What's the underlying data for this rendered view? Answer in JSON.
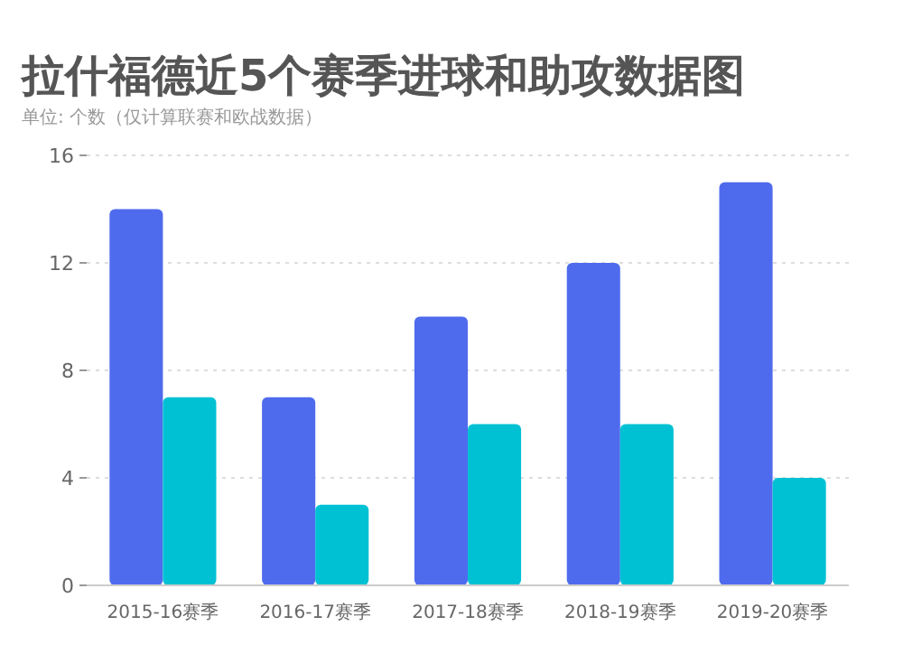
{
  "chart_data": {
    "type": "bar",
    "title": "拉什福德近5个赛季进球和助攻数据图",
    "subtitle": "单位: 个数（仅计算联赛和欧战数据）",
    "categories": [
      "2015-16赛季",
      "2016-17赛季",
      "2017-18赛季",
      "2018-19赛季",
      "2019-20赛季"
    ],
    "series": [
      {
        "color": "#4f6bed",
        "values": [
          14,
          7,
          10,
          12,
          15
        ]
      },
      {
        "color": "#00c1d4",
        "values": [
          7,
          3,
          6,
          6,
          4
        ]
      }
    ],
    "ylim": [
      0,
      16
    ],
    "yticks": [
      0,
      4,
      8,
      12,
      16
    ],
    "grid": "y"
  }
}
